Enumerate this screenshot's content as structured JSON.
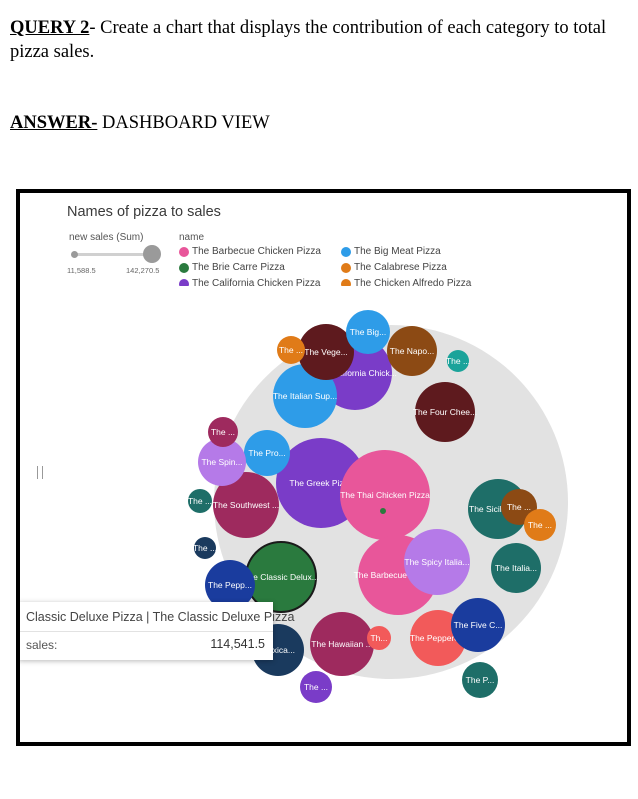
{
  "header": {
    "query_label": "QUERY 2",
    "query_text": "- Create a chart that displays the contribution of each category to total pizza sales.",
    "answer_label": "ANSWER-",
    "answer_text": " DASHBOARD VIEW"
  },
  "chart_data": {
    "type": "bubble",
    "title": "Names of pizza to sales",
    "size_legend": {
      "title": "new sales (Sum)",
      "min_label": "11,588.5",
      "max_label": "142,270.5"
    },
    "color_legend": {
      "title": "name",
      "items": [
        {
          "label": "The Barbecue Chicken Pizza",
          "color": "#e8569a"
        },
        {
          "label": "The Big Meat Pizza",
          "color": "#2e9ce8"
        },
        {
          "label": "The Brie Carre Pizza",
          "color": "#2a7a3e"
        },
        {
          "label": "The Calabrese Pizza",
          "color": "#e07b18"
        },
        {
          "label": "The California Chicken Pizza",
          "color": "#7a3cc8"
        },
        {
          "label": "The Chicken Alfredo Pizza",
          "color": "#e07b18"
        }
      ]
    },
    "bubbles": [
      {
        "label": "The Greek Pizza",
        "color": "#7a3cc8"
      },
      {
        "label": "The Thai Chicken Pizza",
        "color": "#e8569a"
      },
      {
        "label": "The Barbecue Chicke...",
        "color": "#e8569a"
      },
      {
        "label": "The California Chick...",
        "color": "#7a3cc8"
      },
      {
        "label": "The Classic Delux...",
        "color": "#2a7a3e"
      },
      {
        "label": "The Italian Sup...",
        "color": "#2e9ce8"
      },
      {
        "label": "The Spicy Italia...",
        "color": "#b57ae8"
      },
      {
        "label": "The Southwest ...",
        "color": "#9e2a5e"
      },
      {
        "label": "The Four Chee...",
        "color": "#5e1a1e"
      },
      {
        "label": "The Hawaiian ...",
        "color": "#9e2a5e"
      },
      {
        "label": "The Sicilian P...",
        "color": "#1e6e68"
      },
      {
        "label": "The Vege...",
        "color": "#5e1a1e"
      },
      {
        "label": "The Peppero...",
        "color": "#f25a5a"
      },
      {
        "label": "The Five C...",
        "color": "#1a3c9e"
      },
      {
        "label": "The Pepp...",
        "color": "#1a3c9e"
      },
      {
        "label": "The Napo...",
        "color": "#8c4a14"
      },
      {
        "label": "The Italia...",
        "color": "#1e6e68"
      },
      {
        "label": "The Pro...",
        "color": "#2e9ce8"
      },
      {
        "label": "The Big...",
        "color": "#2e9ce8"
      },
      {
        "label": "...exica...",
        "color": "#1a3a5e"
      },
      {
        "label": "The Spin...",
        "color": "#b57ae8"
      },
      {
        "label": "The P...",
        "color": "#1e6e68"
      },
      {
        "label": "The ...",
        "color": "#7a3cc8"
      },
      {
        "label": "The ...",
        "color": "#e07b18"
      },
      {
        "label": "The ...",
        "color": "#9e2a5e"
      },
      {
        "label": "Th...",
        "color": "#f25a5a"
      },
      {
        "label": "The ...",
        "color": "#8c4a14"
      },
      {
        "label": "The ...",
        "color": "#1e6e68"
      },
      {
        "label": "The ...",
        "color": "#1a3a5e"
      },
      {
        "label": "The ...",
        "color": "#e07b18"
      },
      {
        "label": "The ...",
        "color": "#1aa39a"
      },
      {
        "label": "",
        "color": "#2a7a3e"
      }
    ]
  },
  "tooltip": {
    "title": "Classic Deluxe Pizza | The Classic Deluxe Pizza",
    "key": "sales:",
    "value": "114,541.5"
  }
}
